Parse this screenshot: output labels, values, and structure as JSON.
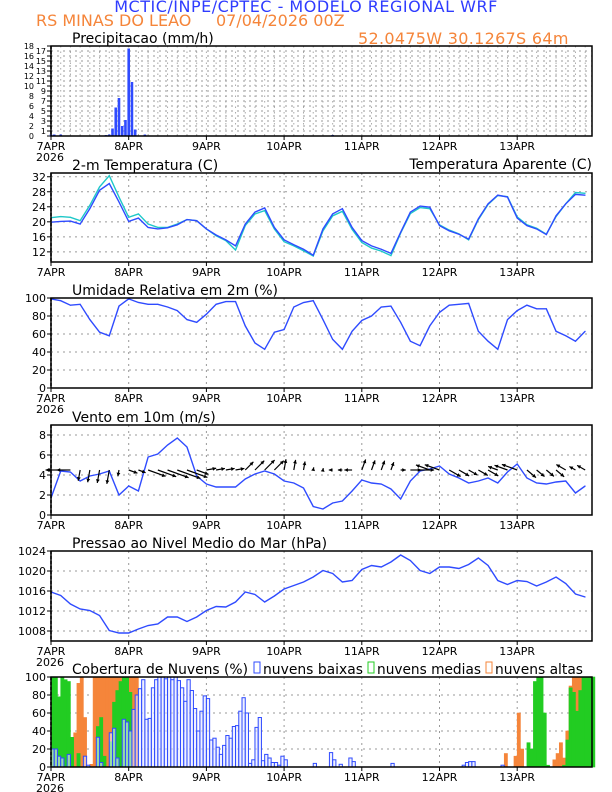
{
  "header": {
    "title": "MCTIC/INPE/CPTEC - MODELO REGIONAL WRF",
    "station": "RS MINAS DO LEAO",
    "run": "07/04/2026 00Z",
    "location": "52.0475W 30.1267S 64m"
  },
  "colors": {
    "title": "#2f3cff",
    "subtitle": "#f5853a",
    "series_blue": "#2f4bff",
    "series_cyan": "#1ec8c8",
    "low_clouds": "#2f4bff",
    "mid_clouds": "#22cc22",
    "high_clouds": "#f5853a"
  },
  "x_axis": {
    "labels": [
      "7APR",
      "8APR",
      "9APR",
      "10APR",
      "11APR",
      "12APR",
      "13APR"
    ],
    "year": "2026",
    "range": [
      "07APR 00Z",
      "13APR 23Z"
    ]
  },
  "chart_data": [
    {
      "id": "precip",
      "type": "bar",
      "title": "Precipitacao (mm/h)",
      "ylim": [
        0,
        18
      ],
      "yticks": [
        0,
        1,
        2,
        3,
        4,
        5,
        6,
        7,
        8,
        9,
        10,
        11,
        12,
        13,
        14,
        15,
        16,
        17,
        18
      ],
      "grid": true,
      "bars": [
        {
          "time": "07APR 00Z",
          "value": 0.3
        },
        {
          "time": "07APR 01Z",
          "value": 0.3
        },
        {
          "time": "07APR 03Z",
          "value": 0.3
        },
        {
          "time": "07APR 17Z",
          "value": 0.2
        },
        {
          "time": "07APR 18Z",
          "value": 0.3
        },
        {
          "time": "07APR 19Z",
          "value": 1.5
        },
        {
          "time": "07APR 20Z",
          "value": 5.7
        },
        {
          "time": "07APR 21Z",
          "value": 7.6
        },
        {
          "time": "07APR 22Z",
          "value": 2.0
        },
        {
          "time": "07APR 23Z",
          "value": 3.2
        },
        {
          "time": "08APR 00Z",
          "value": 17.5
        },
        {
          "time": "08APR 01Z",
          "value": 10.8
        },
        {
          "time": "08APR 02Z",
          "value": 1.3
        },
        {
          "time": "08APR 05Z",
          "value": 0.3
        },
        {
          "time": "08APR 14Z",
          "value": 0.1
        },
        {
          "time": "08APR 15Z",
          "value": 0.1
        },
        {
          "time": "08APR 16Z",
          "value": 0.1
        },
        {
          "time": "08APR 17Z",
          "value": 0.1
        },
        {
          "time": "08APR 18Z",
          "value": 0.1
        },
        {
          "time": "10APR 15Z",
          "value": 0.2
        }
      ]
    },
    {
      "id": "temp",
      "type": "line",
      "title": "2-m Temperatura (C)",
      "ylim": [
        9.3,
        33
      ],
      "yticks": [
        12,
        16,
        20,
        24,
        28,
        32
      ],
      "grid": true,
      "x": [
        "07APR 00Z",
        "07APR 03Z",
        "07APR 06Z",
        "07APR 09Z",
        "07APR 12Z",
        "07APR 15Z",
        "07APR 18Z",
        "07APR 21Z",
        "08APR 00Z",
        "08APR 03Z",
        "08APR 06Z",
        "08APR 09Z",
        "08APR 12Z",
        "08APR 15Z",
        "08APR 18Z",
        "08APR 21Z",
        "09APR 00Z",
        "09APR 03Z",
        "09APR 06Z",
        "09APR 09Z",
        "09APR 12Z",
        "09APR 15Z",
        "09APR 18Z",
        "09APR 21Z",
        "10APR 00Z",
        "10APR 03Z",
        "10APR 06Z",
        "10APR 09Z",
        "10APR 12Z",
        "10APR 15Z",
        "10APR 18Z",
        "10APR 21Z",
        "11APR 00Z",
        "11APR 03Z",
        "11APR 06Z",
        "11APR 09Z",
        "11APR 12Z",
        "11APR 15Z",
        "11APR 18Z",
        "11APR 21Z",
        "12APR 00Z",
        "12APR 03Z",
        "12APR 06Z",
        "12APR 09Z",
        "12APR 12Z",
        "12APR 15Z",
        "12APR 18Z",
        "12APR 21Z",
        "13APR 00Z",
        "13APR 03Z",
        "13APR 06Z",
        "13APR 09Z",
        "13APR 12Z",
        "13APR 15Z",
        "13APR 18Z",
        "13APR 21Z"
      ],
      "series": [
        {
          "name": "",
          "color": "#2f4bff",
          "values": [
            19.9,
            20.1,
            20.2,
            19.4,
            23.5,
            28.4,
            30.2,
            25.3,
            20.1,
            21,
            18.5,
            18.1,
            18.4,
            19.2,
            20.6,
            20.3,
            18.1,
            16.5,
            15.2,
            13.6,
            19.4,
            22.6,
            23.7,
            18.5,
            15.2,
            13.9,
            12.7,
            11.1,
            18.1,
            22.1,
            23.5,
            18.5,
            15,
            13.6,
            12.7,
            11.6,
            17.2,
            22.6,
            24.2,
            23.9,
            19,
            17.6,
            16.7,
            15.4,
            20.8,
            24.8,
            27.1,
            26.6,
            21,
            19,
            18.1,
            16.6,
            21.6,
            24.8,
            27.3,
            27.1
          ]
        },
        {
          "name": "Temperatura Aparente (C)",
          "color": "#1ec8c8",
          "values": [
            21.1,
            21.4,
            21.2,
            20.3,
            24.4,
            29.3,
            32.3,
            26.6,
            21.2,
            22.1,
            19.4,
            18.5,
            18.5,
            19.4,
            20.6,
            20.3,
            18.1,
            16.3,
            15,
            12.5,
            19,
            22.1,
            23,
            18.1,
            14.7,
            13.6,
            12.3,
            10.9,
            17.6,
            21.6,
            22.8,
            18,
            14.5,
            13,
            12.2,
            11,
            17,
            22.2,
            23.8,
            23.5,
            19.2,
            17.8,
            16.8,
            15.2,
            20.6,
            24.6,
            27,
            26.7,
            21.3,
            19.2,
            18.3,
            16.7,
            21.4,
            24.8,
            27.8,
            27.6
          ]
        }
      ],
      "legend": "top-right"
    },
    {
      "id": "rh",
      "type": "line",
      "title": "Umidade Relativa em 2m (%)",
      "ylim": [
        0,
        100
      ],
      "yticks": [
        0,
        20,
        40,
        60,
        80,
        100
      ],
      "grid": true,
      "series": [
        {
          "name": "",
          "color": "#2f4bff",
          "values": [
            99,
            97,
            92,
            93,
            76,
            62,
            58,
            91,
            99,
            95,
            93,
            93,
            90,
            86,
            76,
            73,
            82,
            93,
            96,
            96,
            69,
            50,
            43,
            62,
            65,
            90,
            95,
            97,
            76,
            54,
            43,
            63,
            75,
            80,
            90,
            91,
            73,
            52,
            47,
            69,
            84,
            92,
            93,
            94,
            63,
            52,
            43,
            76,
            86,
            92,
            88,
            88,
            63,
            58,
            52,
            63
          ]
        }
      ]
    },
    {
      "id": "wind",
      "type": "line",
      "title": "Vento em 10m (m/s)",
      "ylim": [
        0,
        9
      ],
      "yticks": [
        0,
        2,
        4,
        6,
        8
      ],
      "grid": true,
      "series": [
        {
          "name": "",
          "color": "#2f4bff",
          "values": [
            1.7,
            4.4,
            4.3,
            3.4,
            3.9,
            4.1,
            4.4,
            2.0,
            2.9,
            2.4,
            5.8,
            6.1,
            7.0,
            7.7,
            6.8,
            3.9,
            3.1,
            2.8,
            2.8,
            2.8,
            3.6,
            4.1,
            4.4,
            4.1,
            3.4,
            3.2,
            2.7,
            0.85,
            0.6,
            1.2,
            1.4,
            2.4,
            3.5,
            3.2,
            3.1,
            2.6,
            1.6,
            3.4,
            4.4,
            4.6,
            4.9,
            4.1,
            3.7,
            3.2,
            3.4,
            3.7,
            3.2,
            4.3,
            5.1,
            3.7,
            3.2,
            3.1,
            3.3,
            3.4,
            2.2,
            2.9
          ]
        }
      ],
      "vectors": {
        "baseline": 4.5,
        "direction_to_deg": [
          180,
          180,
          180,
          260,
          260,
          260,
          260,
          260,
          -20,
          -20,
          -20,
          -20,
          -20,
          -20,
          -20,
          -20,
          10,
          10,
          10,
          10,
          45,
          45,
          45,
          45,
          80,
          80,
          80,
          80,
          80,
          180,
          180,
          180,
          70,
          70,
          70,
          70,
          0,
          0,
          0,
          160,
          160,
          -30,
          -30,
          -30,
          -30,
          -30,
          160,
          160,
          160,
          -40,
          -40,
          -40,
          -40,
          150,
          150,
          150
        ]
      }
    },
    {
      "id": "pressure",
      "type": "line",
      "title": "Pressao ao Nivel Medio do Mar (hPa)",
      "ylim": [
        1006,
        1024
      ],
      "yticks": [
        1008,
        1012,
        1016,
        1020,
        1024
      ],
      "grid": true,
      "series": [
        {
          "name": "",
          "color": "#2f4bff",
          "values": [
            1015.8,
            1015.1,
            1013.4,
            1012.4,
            1012.1,
            1011.1,
            1008.1,
            1007.6,
            1007.6,
            1008.4,
            1009.1,
            1009.4,
            1010.8,
            1010.8,
            1009.9,
            1010.8,
            1012.1,
            1012.9,
            1012.8,
            1013.8,
            1015.8,
            1015.3,
            1013.8,
            1015,
            1016.4,
            1017.1,
            1017.8,
            1018.8,
            1020.1,
            1019.5,
            1017.8,
            1018.1,
            1020.3,
            1021.1,
            1020.8,
            1021.8,
            1023.2,
            1022.1,
            1020.1,
            1019.5,
            1020.8,
            1020.8,
            1020.5,
            1021.3,
            1022.6,
            1021.1,
            1018.1,
            1017.3,
            1018.1,
            1017.9,
            1017,
            1017.8,
            1018.8,
            1017.5,
            1015.4,
            1014.8
          ]
        }
      ]
    },
    {
      "id": "clouds",
      "type": "bar",
      "title": "Cobertura de Nuvens (%)",
      "ylim": [
        0,
        100
      ],
      "yticks": [
        0,
        20,
        40,
        60,
        80,
        100
      ],
      "grid": true,
      "time_start": "07APR 00Z",
      "time_step": "1h",
      "series": [
        {
          "name": "nuvens altas",
          "color": "#f5853a",
          "values": [
            0,
            0,
            0,
            0,
            0,
            0,
            0,
            38,
            93,
            100,
            55,
            0,
            3,
            100,
            100,
            100,
            100,
            100,
            100,
            100,
            100,
            100,
            100,
            100,
            100,
            100,
            100,
            0,
            0,
            0,
            0,
            0,
            0,
            0,
            0,
            0,
            0,
            0,
            0,
            0,
            0,
            0,
            0,
            0,
            0,
            0,
            0,
            0,
            0,
            0,
            0,
            0,
            0,
            0,
            0,
            0,
            0,
            0,
            0,
            0,
            0,
            0,
            0,
            0,
            0,
            0,
            0,
            0,
            0,
            0,
            0,
            0,
            0,
            0,
            0,
            0,
            0,
            0,
            0,
            0,
            0,
            0,
            0,
            0,
            0,
            0,
            0,
            0,
            0,
            0,
            0,
            0,
            0,
            0,
            0,
            0,
            0,
            0,
            0,
            0,
            0,
            0,
            0,
            0,
            0,
            0,
            0,
            0,
            0,
            0,
            0,
            0,
            0,
            0,
            0,
            0,
            0,
            0,
            0,
            0,
            0,
            0,
            0,
            0,
            0,
            0,
            0,
            0,
            0,
            0,
            0,
            0,
            0,
            0,
            0,
            0,
            0,
            0,
            0,
            0,
            15,
            0,
            0,
            12,
            60,
            20,
            0,
            0,
            0,
            0,
            0,
            0,
            0,
            0,
            0,
            8,
            15,
            27,
            10,
            40,
            90,
            100,
            100,
            100
          ]
        },
        {
          "name": "nuvens medias",
          "color": "#22cc22",
          "values": [
            100,
            100,
            78,
            100,
            97,
            95,
            33,
            0,
            15,
            0,
            0,
            0,
            0,
            0,
            45,
            55,
            12,
            0,
            28,
            72,
            85,
            95,
            100,
            100,
            83,
            0,
            0,
            0,
            0,
            0,
            0,
            0,
            0,
            0,
            0,
            0,
            0,
            0,
            0,
            0,
            0,
            0,
            0,
            0,
            0,
            0,
            0,
            0,
            0,
            0,
            0,
            0,
            0,
            0,
            0,
            0,
            0,
            0,
            0,
            0,
            0,
            0,
            0,
            0,
            0,
            0,
            0,
            0,
            0,
            0,
            0,
            0,
            0,
            0,
            0,
            0,
            0,
            0,
            0,
            0,
            0,
            0,
            0,
            0,
            0,
            0,
            0,
            0,
            0,
            0,
            0,
            0,
            0,
            0,
            0,
            0,
            0,
            0,
            0,
            0,
            0,
            0,
            0,
            0,
            0,
            0,
            0,
            0,
            0,
            0,
            0,
            0,
            0,
            0,
            0,
            0,
            0,
            0,
            0,
            0,
            0,
            0,
            0,
            0,
            0,
            0,
            0,
            0,
            0,
            0,
            0,
            0,
            0,
            0,
            0,
            0,
            0,
            0,
            0,
            0,
            0,
            0,
            0,
            0,
            0,
            0,
            0,
            27,
            20,
            95,
            100,
            100,
            60,
            2,
            0,
            0,
            0,
            0,
            2,
            30,
            88,
            83,
            62,
            85,
            100,
            100,
            100,
            100
          ]
        },
        {
          "name": "nuvens baixas",
          "color": "#2f4bff",
          "values": [
            20,
            20,
            12,
            10,
            0,
            14,
            0,
            0,
            0,
            0,
            12,
            2,
            0,
            0,
            33,
            5,
            0,
            0,
            38,
            43,
            10,
            0,
            53,
            50,
            40,
            64,
            80,
            87,
            97,
            53,
            54,
            88,
            97,
            100,
            100,
            98,
            100,
            97,
            100,
            96,
            88,
            73,
            97,
            85,
            65,
            40,
            62,
            79,
            76,
            30,
            32,
            22,
            14,
            24,
            35,
            32,
            45,
            46,
            62,
            77,
            60,
            4,
            8,
            44,
            55,
            7,
            14,
            10,
            5,
            5,
            2,
            12,
            8,
            0,
            0,
            0,
            0,
            0,
            0,
            0,
            0,
            4,
            0,
            0,
            0,
            0,
            16,
            8,
            0,
            3,
            0,
            0,
            10,
            6,
            0,
            0,
            0,
            0,
            0,
            0,
            0,
            0,
            0,
            0,
            0,
            4,
            0,
            0,
            0,
            0,
            0,
            0,
            0,
            0,
            0,
            0,
            0,
            0,
            0,
            0,
            0,
            0,
            0,
            0,
            0,
            0,
            0,
            2,
            5,
            6,
            6,
            0,
            0,
            0,
            0,
            0,
            0,
            0,
            0,
            2,
            0,
            0,
            0,
            0,
            0,
            0,
            0,
            0,
            0,
            0,
            0,
            0,
            0,
            0,
            0,
            0,
            0,
            0,
            0,
            0,
            0,
            0,
            0,
            0,
            0,
            0,
            0,
            0
          ]
        }
      ],
      "legend": [
        "nuvens baixas",
        "nuvens medias",
        "nuvens altas"
      ]
    }
  ]
}
